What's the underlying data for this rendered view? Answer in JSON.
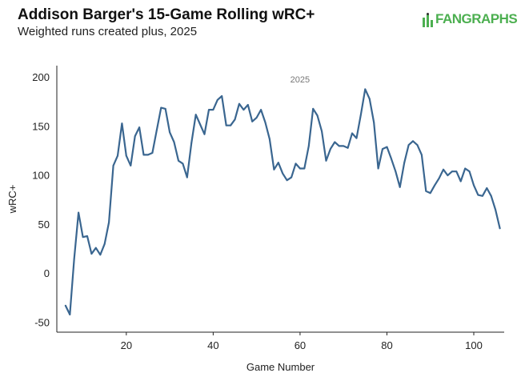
{
  "header": {
    "title": "Addison Barger's 15-Game Rolling wRC+",
    "subtitle": "Weighted runs created plus, 2025"
  },
  "logo": {
    "text": "FANGRAPHS",
    "icon": "fangraphs-logo-icon",
    "color": "#4caf50"
  },
  "chart_data": {
    "type": "line",
    "title": "Addison Barger's 15-Game Rolling wRC+",
    "subtitle": "Weighted runs created plus, 2025",
    "xlabel": "Game Number",
    "ylabel": "wRC+",
    "xlim": [
      4,
      107
    ],
    "ylim": [
      -60,
      212
    ],
    "xticks": [
      20,
      40,
      60,
      80,
      100
    ],
    "yticks": [
      -50,
      0,
      50,
      100,
      150,
      200
    ],
    "xtick_labels": [
      "20",
      "40",
      "60",
      "80",
      "100"
    ],
    "ytick_labels": [
      "-50",
      "0",
      "50",
      "100",
      "150",
      "200"
    ],
    "grid": false,
    "annotation": {
      "text": "2025",
      "x": 60,
      "y": 198
    },
    "line_color": "#3a6690",
    "series": [
      {
        "x": [
          6,
          7,
          8,
          9,
          10,
          11,
          12,
          13,
          14,
          15,
          16,
          17,
          18,
          19,
          20,
          21,
          22,
          23,
          24,
          25,
          26,
          27,
          28,
          29,
          30,
          31,
          32,
          33,
          34,
          35,
          36,
          37,
          38,
          39,
          40,
          41,
          42,
          43,
          44,
          45,
          46,
          47,
          48,
          49,
          50,
          51,
          52,
          53,
          54,
          55,
          56,
          57,
          58,
          59,
          60,
          61,
          62,
          63,
          64,
          65,
          66,
          67,
          68,
          69,
          70,
          71,
          72,
          73,
          74,
          75,
          76,
          77,
          78,
          79,
          80,
          81,
          82,
          83,
          84,
          85,
          86,
          87,
          88,
          89,
          90,
          91,
          92,
          93,
          94,
          95,
          96,
          97,
          98,
          99,
          100,
          101,
          102,
          103,
          104,
          105,
          106
        ],
        "values": [
          -33,
          -42,
          15,
          62,
          37,
          38,
          20,
          26,
          19,
          30,
          52,
          110,
          120,
          153,
          120,
          110,
          140,
          149,
          121,
          121,
          123,
          146,
          169,
          168,
          144,
          134,
          115,
          112,
          98,
          133,
          162,
          152,
          142,
          167,
          167,
          177,
          181,
          151,
          151,
          157,
          173,
          167,
          172,
          155,
          159,
          167,
          154,
          137,
          106,
          113,
          102,
          95,
          98,
          112,
          107,
          107,
          130,
          168,
          161,
          145,
          115,
          127,
          134,
          130,
          130,
          128,
          143,
          138,
          162,
          188,
          178,
          154,
          107,
          127,
          129,
          117,
          104,
          88,
          113,
          131,
          135,
          131,
          121,
          84,
          82,
          90,
          97,
          106,
          100,
          104,
          104,
          94,
          107,
          104,
          90,
          80,
          79,
          87,
          79,
          65,
          46
        ]
      }
    ]
  }
}
